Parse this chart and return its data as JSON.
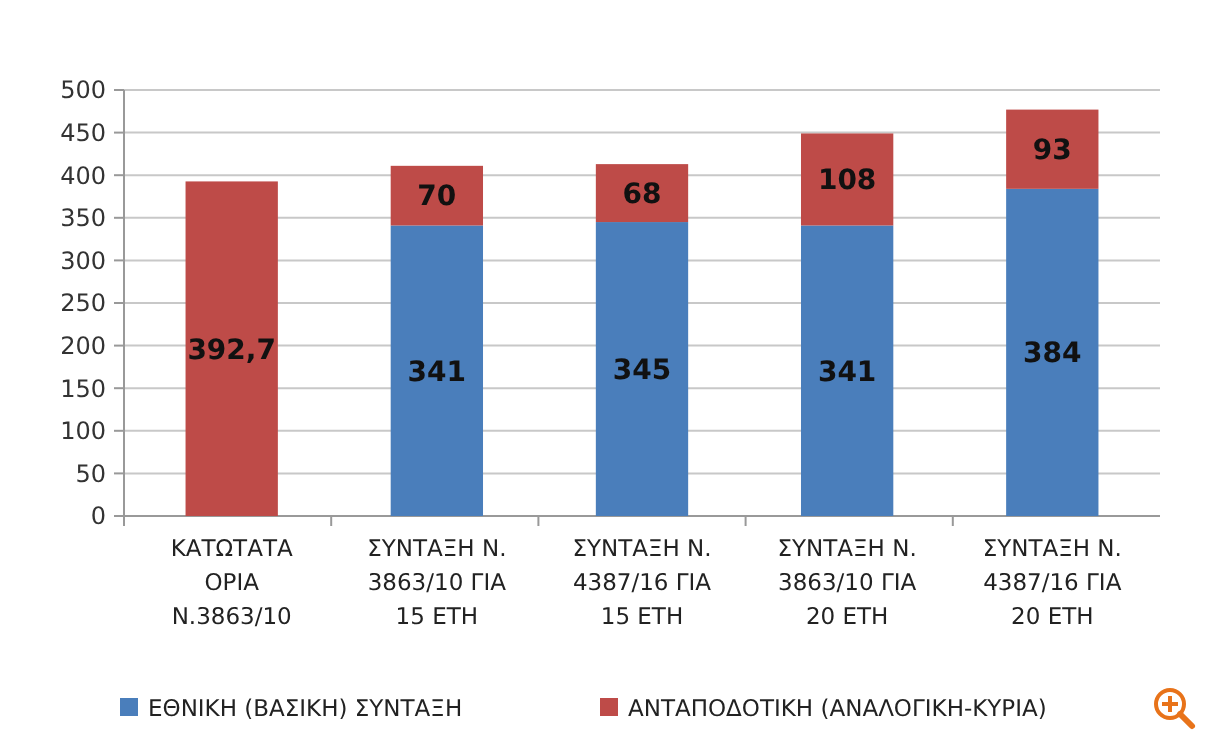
{
  "chart_data": {
    "type": "bar",
    "stacked": true,
    "categories": [
      "ΚΑΤΩΤΑΤΑ ΟΡΙΑ Ν.3863/10",
      "ΣΥΝΤΑΞΗ Ν. 3863/10 ΓΙΑ 15 ΕΤΗ",
      "ΣΥΝΤΑΞΗ Ν. 4387/16 ΓΙΑ 15 ΕΤΗ",
      "ΣΥΝΤΑΞΗ Ν. 3863/10 ΓΙΑ 20 ΕΤΗ",
      "ΣΥΝΤΑΞΗ Ν. 4387/16 ΓΙΑ 20 ΕΤΗ"
    ],
    "series": [
      {
        "name": "ΕΘΝΙΚΗ (ΒΑΣΙΚΗ) ΣΥΝΤΑΞΗ",
        "color": "#4a7ebb",
        "values": [
          null,
          341,
          345,
          341,
          384
        ],
        "value_labels": [
          null,
          "341",
          "345",
          "341",
          "384"
        ]
      },
      {
        "name": "ΑΝΤΑΠΟΔΟΤΙΚΗ (ΑΝΑΛΟΓΙΚΗ-ΚΥΡΙΑ)",
        "color": "#be4b48",
        "values": [
          392.7,
          70,
          68,
          108,
          93
        ],
        "value_labels": [
          "392,7",
          "70",
          "68",
          "108",
          "93"
        ]
      }
    ],
    "ylim": [
      0,
      500
    ],
    "yticks": [
      0,
      50,
      100,
      150,
      200,
      250,
      300,
      350,
      400,
      450,
      500
    ],
    "grid": "y",
    "legend": "bottom"
  }
}
